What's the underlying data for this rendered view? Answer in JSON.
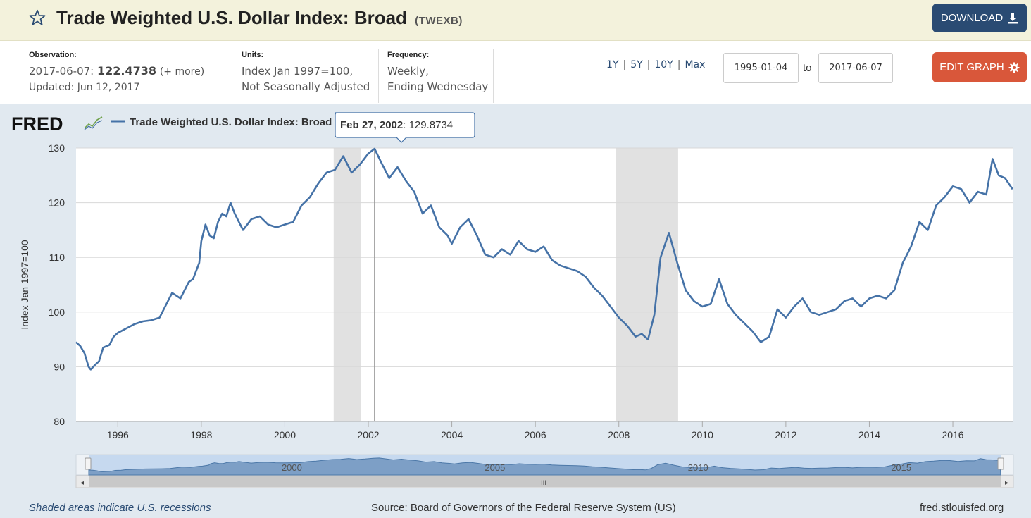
{
  "header": {
    "title": "Trade Weighted U.S. Dollar Index: Broad",
    "series_id": "(TWEXB)",
    "download_label": "DOWNLOAD",
    "edit_label": "EDIT GRAPH"
  },
  "meta": {
    "observation_label": "Observation:",
    "observation_date": "2017-06-07:",
    "observation_value": "122.4738",
    "observation_more": "(+ more)",
    "updated": "Updated: Jun 12, 2017",
    "units_label": "Units:",
    "units_line1": "Index Jan 1997=100,",
    "units_line2": "Not Seasonally Adjusted",
    "frequency_label": "Frequency:",
    "frequency_line1": "Weekly,",
    "frequency_line2": "Ending Wednesday"
  },
  "range": {
    "links": [
      "1Y",
      "5Y",
      "10Y",
      "Max"
    ],
    "from": "1995-01-04",
    "to_label": "to",
    "to": "2017-06-07"
  },
  "legend": {
    "brand": "FRED",
    "series_name": "Trade Weighted U.S. Dollar Index: Broad"
  },
  "tooltip": {
    "date": "Feb 27, 2002",
    "value": ": 129.8734"
  },
  "footer": {
    "recession_note": "Shaded areas indicate U.S. recessions",
    "source": "Source: Board of Governors of the Federal Reserve System (US)",
    "site": "fred.stlouisfed.org"
  },
  "colors": {
    "line": "#4572a7",
    "recession": "#e1e1e1",
    "panel": "#e1e9f0"
  },
  "chart_data": {
    "type": "line",
    "ylabel": "Index Jan 1997=100",
    "ylim": [
      80,
      130
    ],
    "xlim": [
      1995.0,
      2017.45
    ],
    "y_ticks": [
      80,
      90,
      100,
      110,
      120,
      130
    ],
    "x_ticks": [
      1996,
      1998,
      2000,
      2002,
      2004,
      2006,
      2008,
      2010,
      2012,
      2014,
      2016
    ],
    "grid": true,
    "recessions": [
      [
        2001.17,
        2001.83
      ],
      [
        2007.92,
        2009.42
      ]
    ],
    "navigator_labels": [
      "2000",
      "2005",
      "2010",
      "2015"
    ],
    "series": [
      {
        "name": "Trade Weighted U.S. Dollar Index: Broad",
        "x": [
          1995.0,
          1995.1,
          1995.2,
          1995.3,
          1995.35,
          1995.45,
          1995.55,
          1995.65,
          1995.8,
          1995.9,
          1996.0,
          1996.2,
          1996.4,
          1996.6,
          1996.8,
          1997.0,
          1997.2,
          1997.3,
          1997.5,
          1997.7,
          1997.8,
          1997.95,
          1998.0,
          1998.1,
          1998.2,
          1998.3,
          1998.4,
          1998.5,
          1998.6,
          1998.7,
          1998.8,
          1998.9,
          1999.0,
          1999.2,
          1999.4,
          1999.6,
          1999.8,
          2000.0,
          2000.2,
          2000.4,
          2000.6,
          2000.8,
          2001.0,
          2001.2,
          2001.4,
          2001.6,
          2001.8,
          2002.0,
          2002.15,
          2002.3,
          2002.5,
          2002.7,
          2002.9,
          2003.1,
          2003.3,
          2003.5,
          2003.7,
          2003.9,
          2004.0,
          2004.2,
          2004.4,
          2004.6,
          2004.8,
          2005.0,
          2005.2,
          2005.4,
          2005.6,
          2005.8,
          2006.0,
          2006.2,
          2006.4,
          2006.6,
          2006.8,
          2007.0,
          2007.2,
          2007.4,
          2007.6,
          2007.8,
          2008.0,
          2008.2,
          2008.4,
          2008.55,
          2008.7,
          2008.85,
          2009.0,
          2009.2,
          2009.4,
          2009.6,
          2009.8,
          2010.0,
          2010.2,
          2010.4,
          2010.6,
          2010.8,
          2011.0,
          2011.2,
          2011.4,
          2011.6,
          2011.8,
          2012.0,
          2012.2,
          2012.4,
          2012.6,
          2012.8,
          2013.0,
          2013.2,
          2013.4,
          2013.6,
          2013.8,
          2014.0,
          2014.2,
          2014.4,
          2014.6,
          2014.8,
          2015.0,
          2015.2,
          2015.4,
          2015.6,
          2015.8,
          2016.0,
          2016.2,
          2016.4,
          2016.6,
          2016.8,
          2016.95,
          2017.1,
          2017.25,
          2017.43
        ],
        "values": [
          94.5,
          93.8,
          92.5,
          90.0,
          89.5,
          90.3,
          91.0,
          93.5,
          94.0,
          95.5,
          96.2,
          97.0,
          97.8,
          98.3,
          98.5,
          99.0,
          102.0,
          103.5,
          102.5,
          105.5,
          106.0,
          109.0,
          113.0,
          116.0,
          114.0,
          113.5,
          116.5,
          118.0,
          117.5,
          120.0,
          118.0,
          116.5,
          115.0,
          117.0,
          117.5,
          116.0,
          115.5,
          116.0,
          116.5,
          119.5,
          121.0,
          123.5,
          125.5,
          126.0,
          128.5,
          125.5,
          127.0,
          129.0,
          129.87,
          127.5,
          124.5,
          126.5,
          124.0,
          122.0,
          118.0,
          119.5,
          115.5,
          114.0,
          112.5,
          115.5,
          117.0,
          114.0,
          110.5,
          110.0,
          111.5,
          110.5,
          113.0,
          111.5,
          111.0,
          112.0,
          109.5,
          108.5,
          108.0,
          107.5,
          106.5,
          104.5,
          103.0,
          101.0,
          99.0,
          97.5,
          95.5,
          96.0,
          95.0,
          99.5,
          110.0,
          114.5,
          109.0,
          104.0,
          102.0,
          101.0,
          101.5,
          106.0,
          101.5,
          99.5,
          98.0,
          96.5,
          94.5,
          95.5,
          100.5,
          99.0,
          101.0,
          102.5,
          100.0,
          99.5,
          100.0,
          100.5,
          102.0,
          102.5,
          101.0,
          102.5,
          103.0,
          102.5,
          104.0,
          109.0,
          112.0,
          116.5,
          115.0,
          119.5,
          121.0,
          123.0,
          122.5,
          120.0,
          122.0,
          121.5,
          128.0,
          125.0,
          124.5,
          122.47
        ]
      }
    ]
  }
}
